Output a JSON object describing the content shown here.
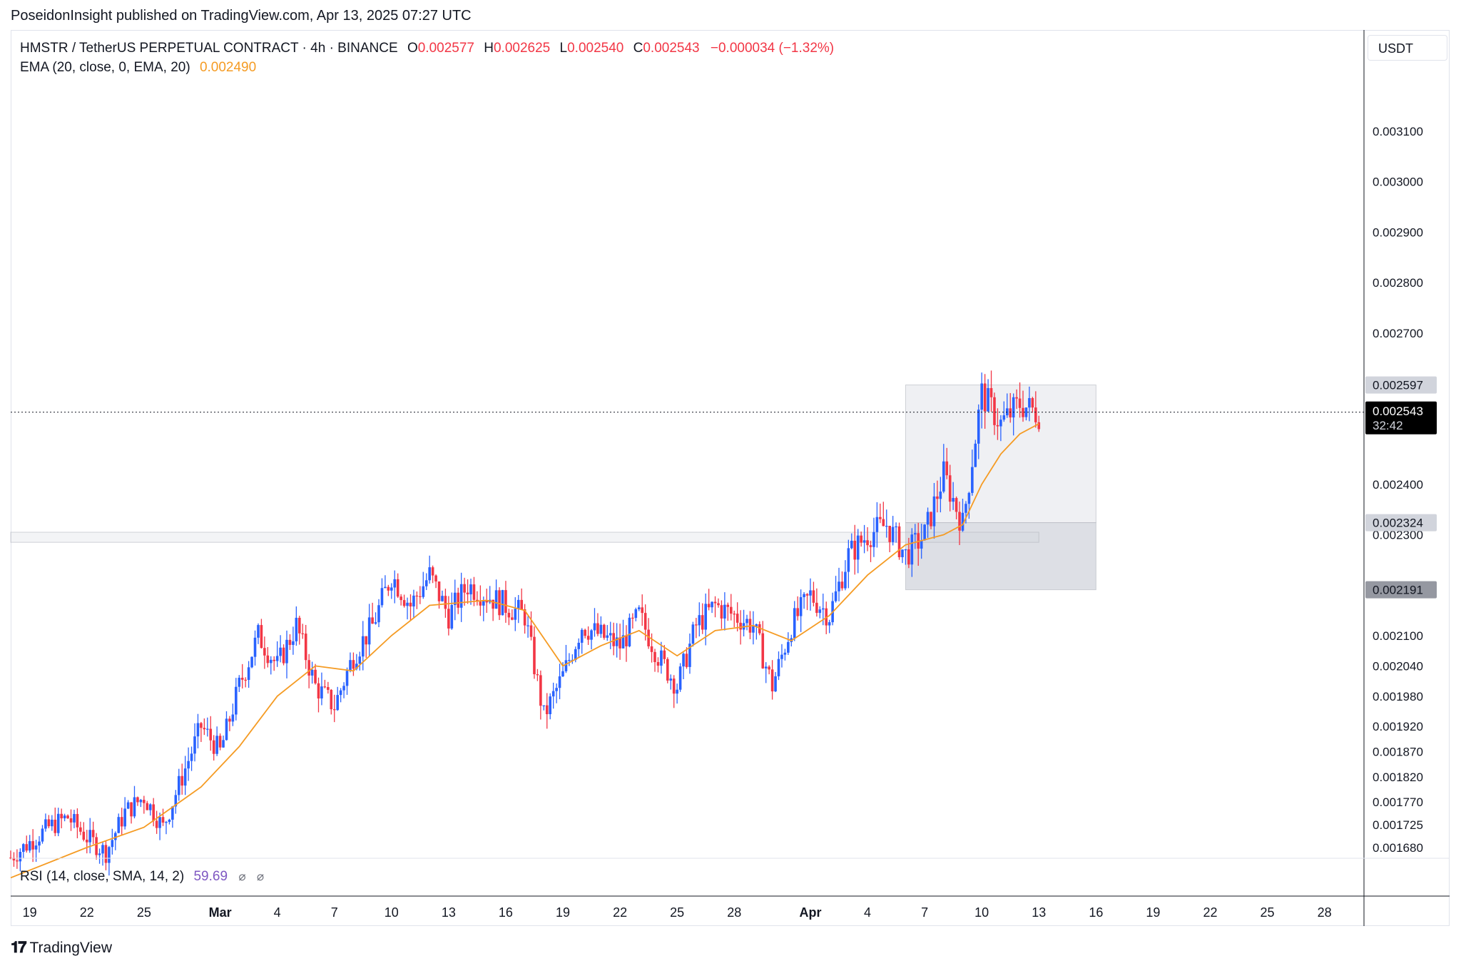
{
  "caption": "PoseidonInsight published on TradingView.com, Apr 13, 2025 07:27 UTC",
  "legend": {
    "symbol": "HMSTR / TetherUS PERPETUAL CONTRACT · 4h · BINANCE",
    "o_label": "O",
    "o_value": "0.002577",
    "h_label": "H",
    "h_value": "0.002625",
    "l_label": "L",
    "l_value": "0.002540",
    "c_label": "C",
    "c_value": "0.002543",
    "change": "−0.000034 (−1.32%)",
    "ema_label": "EMA (20, close, 0, EMA, 20)",
    "ema_value": "0.002490"
  },
  "currency_button": "USDT",
  "rsi": {
    "label": "RSI (14, close, SMA, 14, 2)",
    "value": "59.69",
    "icon1": "⌀",
    "icon2": "⌀"
  },
  "footer": {
    "logo_mark": "𝟏𝟕",
    "logo_text": "TradingView"
  },
  "colors": {
    "up": "#2962ff",
    "down": "#f23645",
    "ema": "#f59b23",
    "zone": "#d1d4dc"
  },
  "chart_data": {
    "type": "candlestick",
    "timeframe": "4h",
    "x_range": [
      "2025-02-18",
      "2025-04-30"
    ],
    "ylim": [
      0.00166,
      0.00324
    ],
    "price_ticks": [
      "0.003100",
      "0.003000",
      "0.002900",
      "0.002800",
      "0.002700",
      "0.002400",
      "0.002300",
      "0.002100",
      "0.002040",
      "0.001980",
      "0.001920",
      "0.001870",
      "0.001820",
      "0.001770",
      "0.001725",
      "0.001680"
    ],
    "price_tick_values": [
      0.0031,
      0.003,
      0.0029,
      0.0028,
      0.0027,
      0.0024,
      0.0023,
      0.0021,
      0.00204,
      0.00198,
      0.00192,
      0.00187,
      0.00182,
      0.00177,
      0.001725,
      0.00168
    ],
    "time_ticks": [
      {
        "label": "19",
        "date": "2025-02-19"
      },
      {
        "label": "22",
        "date": "2025-02-22"
      },
      {
        "label": "25",
        "date": "2025-02-25"
      },
      {
        "label": "Mar",
        "date": "2025-03-01",
        "major": true
      },
      {
        "label": "4",
        "date": "2025-03-04"
      },
      {
        "label": "7",
        "date": "2025-03-07"
      },
      {
        "label": "10",
        "date": "2025-03-10"
      },
      {
        "label": "13",
        "date": "2025-03-13"
      },
      {
        "label": "16",
        "date": "2025-03-16"
      },
      {
        "label": "19",
        "date": "2025-03-19"
      },
      {
        "label": "22",
        "date": "2025-03-22"
      },
      {
        "label": "25",
        "date": "2025-03-25"
      },
      {
        "label": "28",
        "date": "2025-03-28"
      },
      {
        "label": "Apr",
        "date": "2025-04-01",
        "major": true
      },
      {
        "label": "4",
        "date": "2025-04-04"
      },
      {
        "label": "7",
        "date": "2025-04-07"
      },
      {
        "label": "10",
        "date": "2025-04-10"
      },
      {
        "label": "13",
        "date": "2025-04-13"
      },
      {
        "label": "16",
        "date": "2025-04-16"
      },
      {
        "label": "19",
        "date": "2025-04-19"
      },
      {
        "label": "22",
        "date": "2025-04-22"
      },
      {
        "label": "25",
        "date": "2025-04-25"
      },
      {
        "label": "28",
        "date": "2025-04-28"
      }
    ],
    "price_path": [
      [
        "2025-02-18",
        0.00166
      ],
      [
        "2025-02-20",
        0.00172
      ],
      [
        "2025-02-21",
        0.00174
      ],
      [
        "2025-02-22",
        0.0017
      ],
      [
        "2025-02-23",
        0.00167
      ],
      [
        "2025-02-24",
        0.00175
      ],
      [
        "2025-02-25",
        0.00178
      ],
      [
        "2025-02-26",
        0.00172
      ],
      [
        "2025-02-27",
        0.00182
      ],
      [
        "2025-02-28",
        0.00192
      ],
      [
        "2025-03-01",
        0.00187
      ],
      [
        "2025-03-02",
        0.002
      ],
      [
        "2025-03-03",
        0.0021
      ],
      [
        "2025-03-04",
        0.00204
      ],
      [
        "2025-03-05",
        0.00212
      ],
      [
        "2025-03-06",
        0.002
      ],
      [
        "2025-03-07",
        0.00196
      ],
      [
        "2025-03-08",
        0.00206
      ],
      [
        "2025-03-09",
        0.00212
      ],
      [
        "2025-03-10",
        0.00222
      ],
      [
        "2025-03-11",
        0.00216
      ],
      [
        "2025-03-12",
        0.00222
      ],
      [
        "2025-03-13",
        0.00214
      ],
      [
        "2025-03-14",
        0.0022
      ],
      [
        "2025-03-15",
        0.00218
      ],
      [
        "2025-03-16",
        0.00216
      ],
      [
        "2025-03-17",
        0.00214
      ],
      [
        "2025-03-18",
        0.00194
      ],
      [
        "2025-03-19",
        0.00202
      ],
      [
        "2025-03-20",
        0.00212
      ],
      [
        "2025-03-21",
        0.0021
      ],
      [
        "2025-03-22",
        0.00208
      ],
      [
        "2025-03-23",
        0.00214
      ],
      [
        "2025-03-24",
        0.00206
      ],
      [
        "2025-03-25",
        0.002
      ],
      [
        "2025-03-26",
        0.00212
      ],
      [
        "2025-03-27",
        0.00216
      ],
      [
        "2025-03-28",
        0.00214
      ],
      [
        "2025-03-29",
        0.00212
      ],
      [
        "2025-03-30",
        0.002
      ],
      [
        "2025-03-31",
        0.00212
      ],
      [
        "2025-04-01",
        0.00218
      ],
      [
        "2025-04-02",
        0.00214
      ],
      [
        "2025-04-03",
        0.00226
      ],
      [
        "2025-04-04",
        0.0023
      ],
      [
        "2025-04-05",
        0.00232
      ],
      [
        "2025-04-06",
        0.00226
      ],
      [
        "2025-04-07",
        0.0023
      ],
      [
        "2025-04-08",
        0.00242
      ],
      [
        "2025-04-09",
        0.00232
      ],
      [
        "2025-04-10",
        0.00258
      ],
      [
        "2025-04-11",
        0.00252
      ],
      [
        "2025-04-12",
        0.00256
      ],
      [
        "2025-04-13",
        0.00254
      ]
    ],
    "ema_path": [
      [
        "2025-02-18",
        0.00162
      ],
      [
        "2025-02-22",
        0.00168
      ],
      [
        "2025-02-25",
        0.00172
      ],
      [
        "2025-02-28",
        0.0018
      ],
      [
        "2025-03-02",
        0.00188
      ],
      [
        "2025-03-04",
        0.00198
      ],
      [
        "2025-03-06",
        0.00204
      ],
      [
        "2025-03-08",
        0.00203
      ],
      [
        "2025-03-10",
        0.0021
      ],
      [
        "2025-03-12",
        0.00216
      ],
      [
        "2025-03-15",
        0.00217
      ],
      [
        "2025-03-17",
        0.00215
      ],
      [
        "2025-03-19",
        0.00204
      ],
      [
        "2025-03-21",
        0.00208
      ],
      [
        "2025-03-23",
        0.00211
      ],
      [
        "2025-03-25",
        0.00206
      ],
      [
        "2025-03-27",
        0.00211
      ],
      [
        "2025-03-29",
        0.00212
      ],
      [
        "2025-03-31",
        0.00209
      ],
      [
        "2025-04-02",
        0.00214
      ],
      [
        "2025-04-04",
        0.00222
      ],
      [
        "2025-04-06",
        0.00228
      ],
      [
        "2025-04-08",
        0.0023
      ],
      [
        "2025-04-09",
        0.00232
      ],
      [
        "2025-04-10",
        0.0024
      ],
      [
        "2025-04-11",
        0.00246
      ],
      [
        "2025-04-12",
        0.0025
      ],
      [
        "2025-04-13",
        0.00252
      ]
    ],
    "last_price": {
      "value": 0.002543,
      "label": "0.002543",
      "countdown": "32:42"
    },
    "price_labels": [
      {
        "value": 0.002597,
        "label": "0.002597"
      },
      {
        "value": 0.002324,
        "label": "0.002324"
      },
      {
        "value": 0.002191,
        "label": "0.002191"
      }
    ],
    "zones": [
      {
        "name": "upper-box",
        "from": "2025-04-06",
        "to": "2025-04-16",
        "top": 0.002597,
        "bottom": 0.002324,
        "opacity": 0.35
      },
      {
        "name": "lower-box",
        "from": "2025-04-06",
        "to": "2025-04-16",
        "top": 0.002324,
        "bottom": 0.002191,
        "opacity": 0.75
      },
      {
        "name": "resistance-band",
        "from": "2025-02-18",
        "to": "2025-04-13",
        "top": 0.002305,
        "bottom": 0.002285,
        "opacity": 0.25
      }
    ]
  }
}
